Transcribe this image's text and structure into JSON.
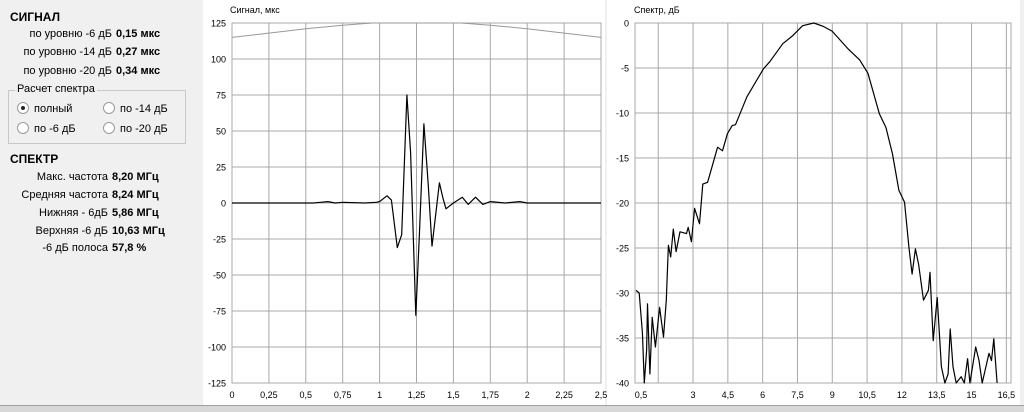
{
  "signal": {
    "title": "СИГНАЛ",
    "rows": [
      {
        "label": "по уровню -6 дБ",
        "value": "0,15 мкс"
      },
      {
        "label": "по уровню -14  дБ",
        "value": "0,27 мкс"
      },
      {
        "label": "по уровню -20  дБ",
        "value": "0,34 мкс"
      }
    ]
  },
  "spectrum_calc": {
    "legend": "Расчет спектра",
    "options": [
      {
        "label": "полный",
        "selected": true
      },
      {
        "label": "по -14 дБ",
        "selected": false
      },
      {
        "label": "по -6 дБ",
        "selected": false
      },
      {
        "label": "по -20 дБ",
        "selected": false
      }
    ]
  },
  "spectrum": {
    "title": "СПЕКТР",
    "rows": [
      {
        "label": "Макс. частота",
        "value": "8,20 МГц"
      },
      {
        "label": "Средняя частота",
        "value": "8,24 МГц"
      },
      {
        "label": "Нижняя - 6дБ",
        "value": "5,86 МГц"
      },
      {
        "label": "Верхняя -6 дБ",
        "value": "10,63 МГц"
      },
      {
        "label": "-6 дБ полоса",
        "value": "57,8 %"
      }
    ]
  },
  "chart_data": [
    {
      "type": "line",
      "title": "Сигнал, мкс",
      "xlim": [
        0,
        2.5
      ],
      "ylim": [
        -125,
        125
      ],
      "grid": true,
      "xticks": [
        0,
        0.25,
        0.5,
        0.75,
        1,
        1.25,
        1.5,
        1.75,
        2,
        2.25,
        2.5
      ],
      "xtick_labels": [
        "0",
        "0,25",
        "0,5",
        "0,75",
        "1",
        "1,25",
        "1,5",
        "1,75",
        "2",
        "2,25",
        "2,5"
      ],
      "yticks": [
        125,
        100,
        75,
        50,
        25,
        0,
        -25,
        -50,
        -75,
        -100,
        -125
      ],
      "ytick_labels": [
        "125",
        "100",
        "75",
        "50",
        "25",
        "0",
        "-25",
        "-50",
        "-75",
        "-100",
        "-125"
      ],
      "series": [
        {
          "color": "#000000",
          "points": [
            [
              0,
              0
            ],
            [
              0.55,
              0
            ],
            [
              0.6,
              0.5
            ],
            [
              0.65,
              1
            ],
            [
              0.7,
              0
            ],
            [
              0.75,
              0.5
            ],
            [
              0.9,
              0
            ],
            [
              0.98,
              0.5
            ],
            [
              1.0,
              1
            ],
            [
              1.05,
              5
            ],
            [
              1.08,
              2
            ],
            [
              1.12,
              -31
            ],
            [
              1.15,
              -22
            ],
            [
              1.185,
              75
            ],
            [
              1.21,
              35
            ],
            [
              1.245,
              -78
            ],
            [
              1.27,
              -20
            ],
            [
              1.3,
              55
            ],
            [
              1.33,
              12
            ],
            [
              1.355,
              -30
            ],
            [
              1.38,
              -8
            ],
            [
              1.405,
              14
            ],
            [
              1.43,
              3
            ],
            [
              1.45,
              -4
            ],
            [
              1.5,
              0
            ],
            [
              1.56,
              4
            ],
            [
              1.6,
              -1
            ],
            [
              1.65,
              4
            ],
            [
              1.7,
              -1
            ],
            [
              1.75,
              1
            ],
            [
              1.85,
              0
            ],
            [
              1.95,
              1
            ],
            [
              2.0,
              0
            ],
            [
              2.5,
              0
            ]
          ]
        },
        {
          "color": "#999999",
          "points": [
            [
              0,
              115
            ],
            [
              0.25,
              118
            ],
            [
              0.5,
              121
            ],
            [
              0.75,
              123.5
            ],
            [
              0.95,
              125
            ],
            [
              1.55,
              125
            ],
            [
              1.75,
              123.5
            ],
            [
              2,
              121
            ],
            [
              2.25,
              118
            ],
            [
              2.5,
              115
            ]
          ]
        }
      ]
    },
    {
      "type": "line",
      "title": "Спектр, дБ",
      "xlim": [
        0.5,
        16.7
      ],
      "ylim": [
        -40,
        0
      ],
      "grid": true,
      "xticks": [
        0.5,
        1.5,
        3,
        4.5,
        6,
        7.5,
        9,
        10.5,
        12,
        13.5,
        15,
        16.5
      ],
      "xtick_labels": [
        "0,5",
        "",
        "3",
        "4,5",
        "6",
        "7,5",
        "9",
        "10,5",
        "12",
        "13,5",
        "15",
        "16,5"
      ],
      "yticks": [
        0,
        -5,
        -10,
        -15,
        -20,
        -25,
        -30,
        -35,
        -40
      ],
      "ytick_labels": [
        "0",
        "-5",
        "-10",
        "-15",
        "-20",
        "-25",
        "-30",
        "-35",
        "-40"
      ],
      "series": [
        {
          "color": "#000000",
          "points": [
            [
              0.54,
              -29.7
            ],
            [
              0.68,
              -30
            ],
            [
              0.82,
              -34.4
            ],
            [
              0.9,
              -40
            ],
            [
              1.0,
              -36.4
            ],
            [
              1.04,
              -31.2
            ],
            [
              1.14,
              -39
            ],
            [
              1.24,
              -32.7
            ],
            [
              1.38,
              -36
            ],
            [
              1.56,
              -31.6
            ],
            [
              1.73,
              -34.9
            ],
            [
              1.85,
              -30.8
            ],
            [
              1.94,
              -24.7
            ],
            [
              2.04,
              -26
            ],
            [
              2.15,
              -22.9
            ],
            [
              2.27,
              -25.4
            ],
            [
              2.44,
              -23.2
            ],
            [
              2.72,
              -23.4
            ],
            [
              2.79,
              -22.7
            ],
            [
              2.93,
              -24.3
            ],
            [
              3.07,
              -20.6
            ],
            [
              3.28,
              -22.3
            ],
            [
              3.42,
              -17.9
            ],
            [
              3.63,
              -17.7
            ],
            [
              4.06,
              -13.8
            ],
            [
              4.27,
              -14.2
            ],
            [
              4.48,
              -12.3
            ],
            [
              4.69,
              -11.4
            ],
            [
              4.83,
              -11.3
            ],
            [
              5.32,
              -8.2
            ],
            [
              6.03,
              -5.1
            ],
            [
              6.31,
              -4.3
            ],
            [
              6.87,
              -2.3
            ],
            [
              7.3,
              -1.4
            ],
            [
              7.72,
              -0.3
            ],
            [
              8.21,
              0
            ],
            [
              8.63,
              -0.4
            ],
            [
              8.99,
              -0.9
            ],
            [
              9.69,
              -2.9
            ],
            [
              10.18,
              -4.1
            ],
            [
              10.54,
              -5.6
            ],
            [
              11.03,
              -10.1
            ],
            [
              11.31,
              -11.6
            ],
            [
              11.59,
              -14.5
            ],
            [
              11.87,
              -18.6
            ],
            [
              12.11,
              -19.9
            ],
            [
              12.3,
              -24.9
            ],
            [
              12.44,
              -27.9
            ],
            [
              12.58,
              -25.1
            ],
            [
              12.72,
              -26.8
            ],
            [
              12.93,
              -30.8
            ],
            [
              13.14,
              -29.7
            ],
            [
              13.21,
              -27.7
            ],
            [
              13.35,
              -35.3
            ],
            [
              13.52,
              -30.5
            ],
            [
              13.7,
              -38.2
            ],
            [
              13.85,
              -40
            ],
            [
              13.99,
              -39
            ],
            [
              14.08,
              -34
            ],
            [
              14.2,
              -38.2
            ],
            [
              14.34,
              -40
            ],
            [
              14.55,
              -39.3
            ],
            [
              14.69,
              -40
            ],
            [
              14.83,
              -37.3
            ],
            [
              14.93,
              -40
            ],
            [
              15.18,
              -36
            ],
            [
              15.32,
              -37.5
            ],
            [
              15.46,
              -40
            ],
            [
              15.75,
              -36.7
            ],
            [
              15.86,
              -37.5
            ],
            [
              15.96,
              -35.1
            ],
            [
              16.1,
              -40
            ]
          ]
        }
      ]
    }
  ]
}
